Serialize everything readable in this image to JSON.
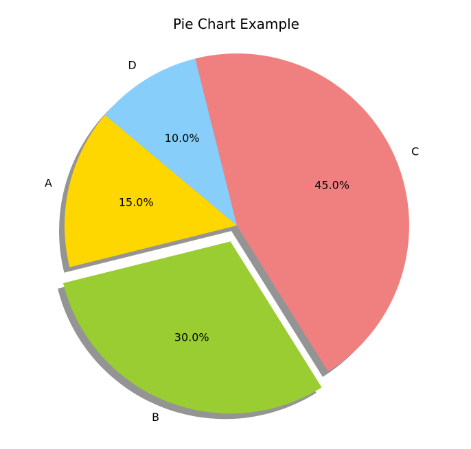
{
  "chart_data": {
    "type": "pie",
    "title": "Pie Chart Example",
    "categories": [
      "A",
      "B",
      "C",
      "D"
    ],
    "values": [
      15,
      30,
      45,
      10
    ],
    "value_labels": [
      "15.0%",
      "30.0%",
      "45.0%",
      "10.0%"
    ],
    "colors": [
      "#ffd700",
      "#9acd32",
      "#f08080",
      "#87cefa"
    ],
    "explode": [
      0,
      0.1,
      0,
      0
    ],
    "shadow": true,
    "start_angle_deg": 140,
    "counterclockwise": true
  }
}
